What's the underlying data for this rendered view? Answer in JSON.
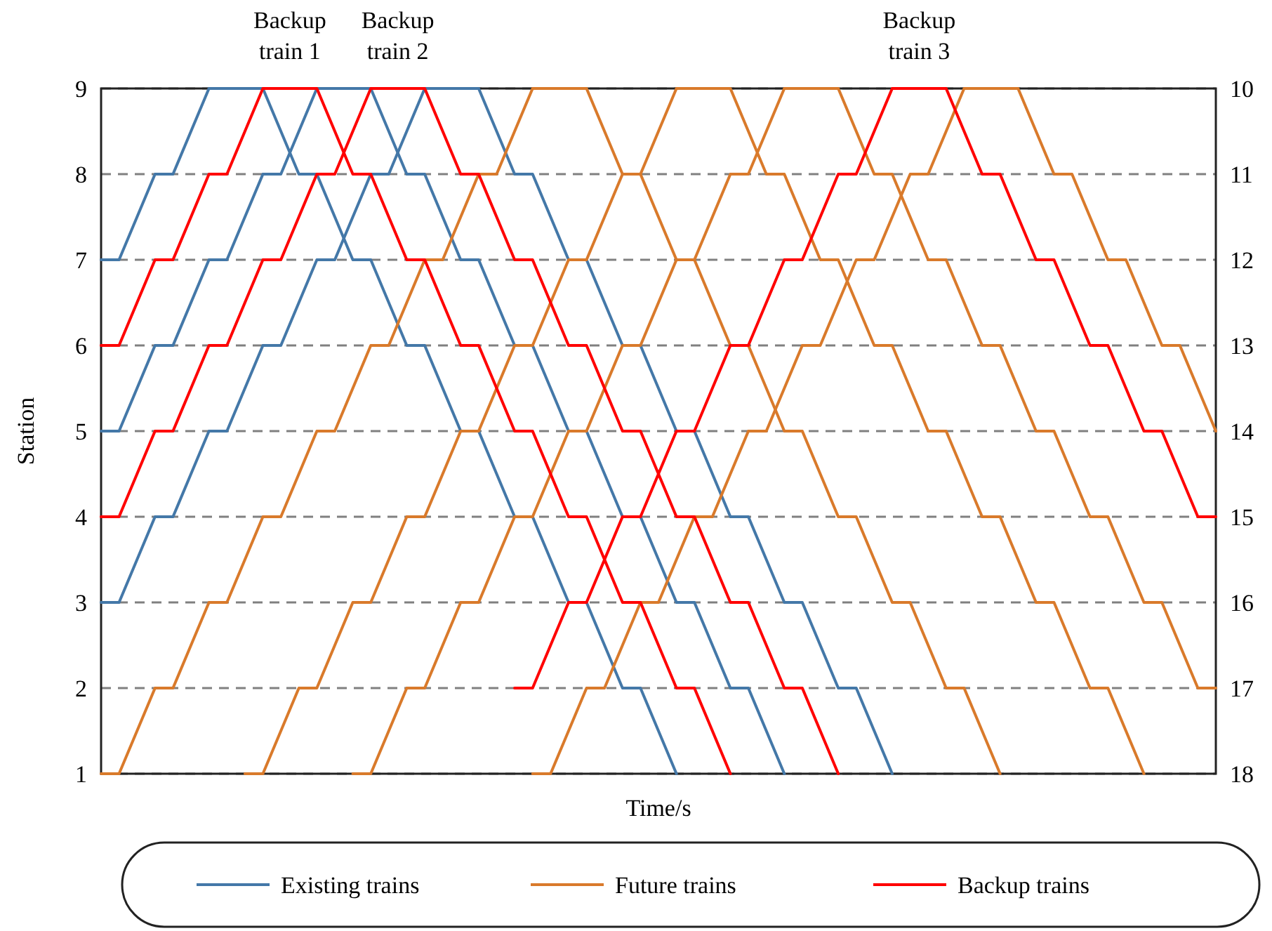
{
  "chart_data": {
    "type": "line",
    "xlabel": "Time/s",
    "ylabel": "Station",
    "categories": [
      null,
      null,
      null,
      null,
      null,
      null,
      null,
      null,
      null,
      null,
      null,
      null,
      null,
      null,
      null,
      null,
      null,
      null,
      null,
      null,
      null,
      null,
      null,
      null,
      null,
      null,
      null,
      null,
      null,
      null,
      null,
      null,
      null,
      null,
      null,
      null,
      null,
      null,
      null,
      null,
      null,
      null,
      null,
      null,
      null,
      null,
      null,
      null,
      null,
      null,
      null,
      null,
      null,
      null,
      null,
      null,
      null,
      null,
      null,
      null,
      null,
      null,
      null
    ],
    "ylim": [
      1,
      9
    ],
    "yticks": [
      1,
      2,
      3,
      4,
      5,
      6,
      7,
      8,
      9
    ],
    "y2lim": [
      18,
      10
    ],
    "y2ticks": [
      10,
      11,
      12,
      13,
      14,
      15,
      16,
      17,
      18
    ],
    "grid": "y",
    "legend": "bottom",
    "marker": "none",
    "line_style": "solid",
    "annotations": [
      "Backup train 1",
      "Backup train 2",
      "Backup train 3"
    ],
    "series": [
      {
        "name": "Existing trains",
        "color": "#4478a8",
        "values": [
          7,
          7,
          7.5,
          8,
          8,
          8.5,
          9,
          9,
          9,
          9,
          8.5,
          8,
          8,
          7.5,
          7,
          7,
          6.5,
          6,
          6,
          5.5,
          5,
          5,
          4.5,
          4,
          4,
          3.5,
          3,
          3,
          2.5,
          2,
          2,
          1.5,
          1,
          null,
          null,
          null,
          null,
          null,
          null,
          null,
          null,
          null,
          null,
          null,
          null,
          null,
          null,
          null,
          null,
          null,
          null,
          null,
          null,
          null,
          null,
          null,
          null,
          null,
          null,
          null,
          null,
          null,
          null
        ]
      },
      {
        "color": "#4478a8",
        "values": [
          5,
          5,
          5.5,
          6,
          6,
          6.5,
          7,
          7,
          7.5,
          8,
          8,
          8.5,
          9,
          9,
          9,
          9,
          8.5,
          8,
          8,
          7.5,
          7,
          7,
          6.5,
          6,
          6,
          5.5,
          5,
          5,
          4.5,
          4,
          4,
          3.5,
          3,
          3,
          2.5,
          2,
          2,
          1.5,
          1,
          null,
          null,
          null,
          null,
          null,
          null,
          null,
          null,
          null,
          null,
          null,
          null,
          null,
          null,
          null,
          null,
          null,
          null,
          null,
          null,
          null,
          null,
          null,
          null
        ]
      },
      {
        "color": "#4478a8",
        "values": [
          3,
          3,
          3.5,
          4,
          4,
          4.5,
          5,
          5,
          5.5,
          6,
          6,
          6.5,
          7,
          7,
          7.5,
          8,
          8,
          8.5,
          9,
          9,
          9,
          9,
          8.5,
          8,
          8,
          7.5,
          7,
          7,
          6.5,
          6,
          6,
          5.5,
          5,
          5,
          4.5,
          4,
          4,
          3.5,
          3,
          3,
          2.5,
          2,
          2,
          1.5,
          1,
          null,
          null,
          null,
          null,
          null,
          null,
          null,
          null,
          null,
          null,
          null,
          null,
          null,
          null,
          null,
          null,
          null,
          null
        ]
      },
      {
        "name": "Future trains",
        "color": "#d97a2b",
        "values": [
          1,
          1,
          1.5,
          2,
          2,
          2.5,
          3,
          3,
          3.5,
          4,
          4,
          4.5,
          5,
          5,
          5.5,
          6,
          6,
          6.5,
          7,
          7,
          7.5,
          8,
          8,
          8.5,
          9,
          9,
          9,
          9,
          8.5,
          8,
          8,
          7.5,
          7,
          7,
          6.5,
          6,
          6,
          5.5,
          5,
          5,
          4.5,
          4,
          4,
          3.5,
          3,
          3,
          2.5,
          2,
          2,
          1.5,
          1,
          null,
          null,
          null,
          null,
          null,
          null,
          null,
          null,
          null,
          null,
          null,
          null
        ]
      },
      {
        "color": "#d97a2b",
        "values": [
          null,
          null,
          null,
          null,
          null,
          null,
          null,
          null,
          1,
          1,
          1.5,
          2,
          2,
          2.5,
          3,
          3,
          3.5,
          4,
          4,
          4.5,
          5,
          5,
          5.5,
          6,
          6,
          6.5,
          7,
          7,
          7.5,
          8,
          8,
          8.5,
          9,
          9,
          9,
          9,
          8.5,
          8,
          8,
          7.5,
          7,
          7,
          6.5,
          6,
          6,
          5.5,
          5,
          5,
          4.5,
          4,
          4,
          3.5,
          3,
          3,
          2.5,
          2,
          2,
          1.5,
          1,
          null,
          null,
          null,
          null
        ]
      },
      {
        "color": "#d97a2b",
        "values": [
          null,
          null,
          null,
          null,
          null,
          null,
          null,
          null,
          null,
          null,
          null,
          null,
          null,
          null,
          1,
          1,
          1.5,
          2,
          2,
          2.5,
          3,
          3,
          3.5,
          4,
          4,
          4.5,
          5,
          5,
          5.5,
          6,
          6,
          6.5,
          7,
          7,
          7.5,
          8,
          8,
          8.5,
          9,
          9,
          9,
          9,
          8.5,
          8,
          8,
          7.5,
          7,
          7,
          6.5,
          6,
          6,
          5.5,
          5,
          5,
          4.5,
          4,
          4,
          3.5,
          3,
          3,
          2.5,
          2,
          2
        ]
      },
      {
        "color": "#d97a2b",
        "values": [
          null,
          null,
          null,
          null,
          null,
          null,
          null,
          null,
          null,
          null,
          null,
          null,
          null,
          null,
          null,
          null,
          null,
          null,
          null,
          null,
          null,
          null,
          null,
          null,
          1,
          1,
          1.5,
          2,
          2,
          2.5,
          3,
          3,
          3.5,
          4,
          4,
          4.5,
          5,
          5,
          5.5,
          6,
          6,
          6.5,
          7,
          7,
          7.5,
          8,
          8,
          8.5,
          9,
          9,
          9,
          9,
          8.5,
          8,
          8,
          7.5,
          7,
          7,
          6.5,
          6,
          6,
          5.5,
          5
        ]
      },
      {
        "name": "Backup trains",
        "color": "#ff0000",
        "values": [
          6,
          6,
          6.5,
          7,
          7,
          7.5,
          8,
          8,
          8.5,
          9,
          9,
          9,
          9,
          8.5,
          8,
          8,
          7.5,
          7,
          7,
          6.5,
          6,
          6,
          5.5,
          5,
          5,
          4.5,
          4,
          4,
          3.5,
          3,
          3,
          2.5,
          2,
          2,
          1.5,
          1,
          null,
          null,
          null,
          null,
          null,
          null,
          null,
          null,
          null,
          null,
          null,
          null,
          null,
          null,
          null,
          null,
          null,
          null,
          null,
          null,
          null,
          null,
          null,
          null,
          null,
          null,
          null
        ]
      },
      {
        "color": "#ff0000",
        "values": [
          4,
          4,
          4.5,
          5,
          5,
          5.5,
          6,
          6,
          6.5,
          7,
          7,
          7.5,
          8,
          8,
          8.5,
          9,
          9,
          9,
          9,
          8.5,
          8,
          8,
          7.5,
          7,
          7,
          6.5,
          6,
          6,
          5.5,
          5,
          5,
          4.5,
          4,
          4,
          3.5,
          3,
          3,
          2.5,
          2,
          2,
          1.5,
          1,
          null,
          null,
          null,
          null,
          null,
          null,
          null,
          null,
          null,
          null,
          null,
          null,
          null,
          null,
          null,
          null,
          null,
          null,
          null,
          null,
          null
        ]
      },
      {
        "color": "#ff0000",
        "values": [
          null,
          null,
          null,
          null,
          null,
          null,
          null,
          null,
          null,
          null,
          null,
          null,
          null,
          null,
          null,
          null,
          null,
          null,
          null,
          null,
          null,
          null,
          null,
          2,
          2,
          2.5,
          3,
          3,
          3.5,
          4,
          4,
          4.5,
          5,
          5,
          5.5,
          6,
          6,
          6.5,
          7,
          7,
          7.5,
          8,
          8,
          8.5,
          9,
          9,
          9,
          9,
          8.5,
          8,
          8,
          7.5,
          7,
          7,
          6.5,
          6,
          6,
          5.5,
          5,
          5,
          4.5,
          4,
          4
        ]
      }
    ]
  }
}
